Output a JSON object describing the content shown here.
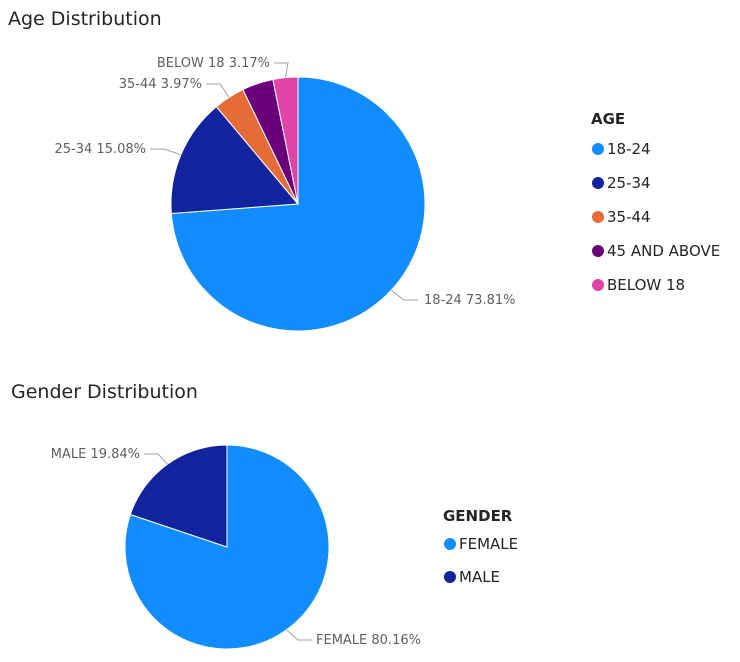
{
  "chart_data": [
    {
      "type": "pie",
      "title": "Age Distribution",
      "legend_title": "AGE",
      "legend_position": "right",
      "categories": [
        "18-24",
        "25-34",
        "35-44",
        "45 AND ABOVE",
        "BELOW 18"
      ],
      "values": [
        73.81,
        15.08,
        3.97,
        3.97,
        3.17
      ],
      "colors": [
        "#118DFF",
        "#12239E",
        "#E66C37",
        "#6B007B",
        "#E044A7"
      ],
      "data_labels": [
        {
          "text": "18-24 73.81%",
          "category": "18-24"
        },
        {
          "text": "25-34 15.08%",
          "category": "25-34"
        },
        {
          "text": "35-44 3.97%",
          "category": "35-44"
        },
        {
          "text": "BELOW 18 3.17%",
          "category": "BELOW 18"
        }
      ]
    },
    {
      "type": "pie",
      "title": "Gender Distribution",
      "legend_title": "GENDER",
      "legend_position": "right",
      "categories": [
        "FEMALE",
        "MALE"
      ],
      "values": [
        80.16,
        19.84
      ],
      "colors": [
        "#118DFF",
        "#12239E"
      ],
      "data_labels": [
        {
          "text": "FEMALE 80.16%",
          "category": "FEMALE"
        },
        {
          "text": "MALE 19.84%",
          "category": "MALE"
        }
      ]
    }
  ]
}
